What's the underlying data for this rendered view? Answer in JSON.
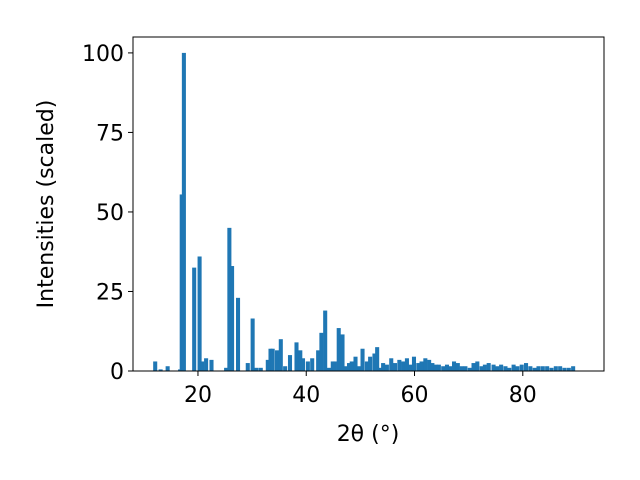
{
  "chart_data": {
    "type": "bar",
    "xlabel": "2θ (°)",
    "ylabel": "Intensities (scaled)",
    "xlim": [
      8,
      95
    ],
    "ylim": [
      0,
      105
    ],
    "x_ticks": [
      20,
      40,
      60,
      80
    ],
    "y_ticks": [
      0,
      25,
      50,
      75,
      100
    ],
    "grid": false,
    "bar_color": "#1f77b4",
    "bar_width": 0.75,
    "x": [
      12.1,
      13.1,
      14.4,
      16.7,
      17.0,
      17.4,
      19.3,
      20.3,
      20.8,
      21.5,
      22.5,
      25.2,
      25.8,
      26.3,
      27.4,
      29.2,
      30.1,
      30.8,
      31.6,
      32.9,
      33.4,
      33.8,
      34.6,
      35.3,
      36.1,
      37.0,
      38.2,
      38.9,
      39.4,
      40.3,
      41.1,
      42.2,
      42.8,
      43.5,
      44.2,
      44.9,
      45.3,
      46.0,
      46.7,
      47.2,
      47.9,
      48.4,
      49.1,
      49.8,
      50.4,
      51.2,
      51.8,
      52.6,
      53.1,
      53.6,
      54.2,
      54.9,
      55.7,
      56.4,
      57.2,
      57.9,
      58.6,
      59.2,
      59.9,
      60.7,
      61.3,
      62.0,
      62.7,
      63.3,
      63.9,
      64.5,
      65.3,
      66.0,
      66.6,
      67.3,
      68.0,
      68.7,
      69.4,
      70.2,
      70.9,
      71.6,
      72.4,
      73.0,
      73.7,
      74.6,
      75.3,
      76.0,
      76.8,
      77.5,
      78.3,
      79.0,
      79.8,
      80.6,
      81.4,
      82.2,
      82.9,
      83.7,
      84.5,
      85.3,
      86.1,
      86.9,
      87.7,
      88.5,
      89.3
    ],
    "values": [
      3,
      0.5,
      1.5,
      0.5,
      55.5,
      100,
      32.5,
      36,
      3,
      4,
      3.5,
      1,
      45,
      33,
      23,
      2.5,
      16.5,
      1,
      1,
      3.5,
      7,
      7,
      6.5,
      10,
      1.5,
      5,
      9,
      6.5,
      4,
      3,
      4,
      6.5,
      12,
      19,
      1,
      3,
      3,
      13.5,
      11.5,
      1.5,
      2.5,
      3,
      4.5,
      1.5,
      7,
      3,
      4.5,
      5.5,
      7.5,
      1,
      2.5,
      2,
      4,
      2.5,
      3.5,
      3,
      4,
      2,
      4.5,
      2.5,
      3,
      4,
      3.5,
      2.5,
      2,
      2,
      1.5,
      2,
      1.5,
      3,
      2.5,
      1.5,
      1.5,
      1,
      2.5,
      3,
      1.5,
      2,
      2.5,
      2,
      1.5,
      2,
      1.5,
      1,
      2,
      1.5,
      2,
      2.5,
      1.5,
      1,
      1.5,
      1.5,
      1.5,
      1,
      1.5,
      1.5,
      1,
      1,
      1.5
    ]
  }
}
